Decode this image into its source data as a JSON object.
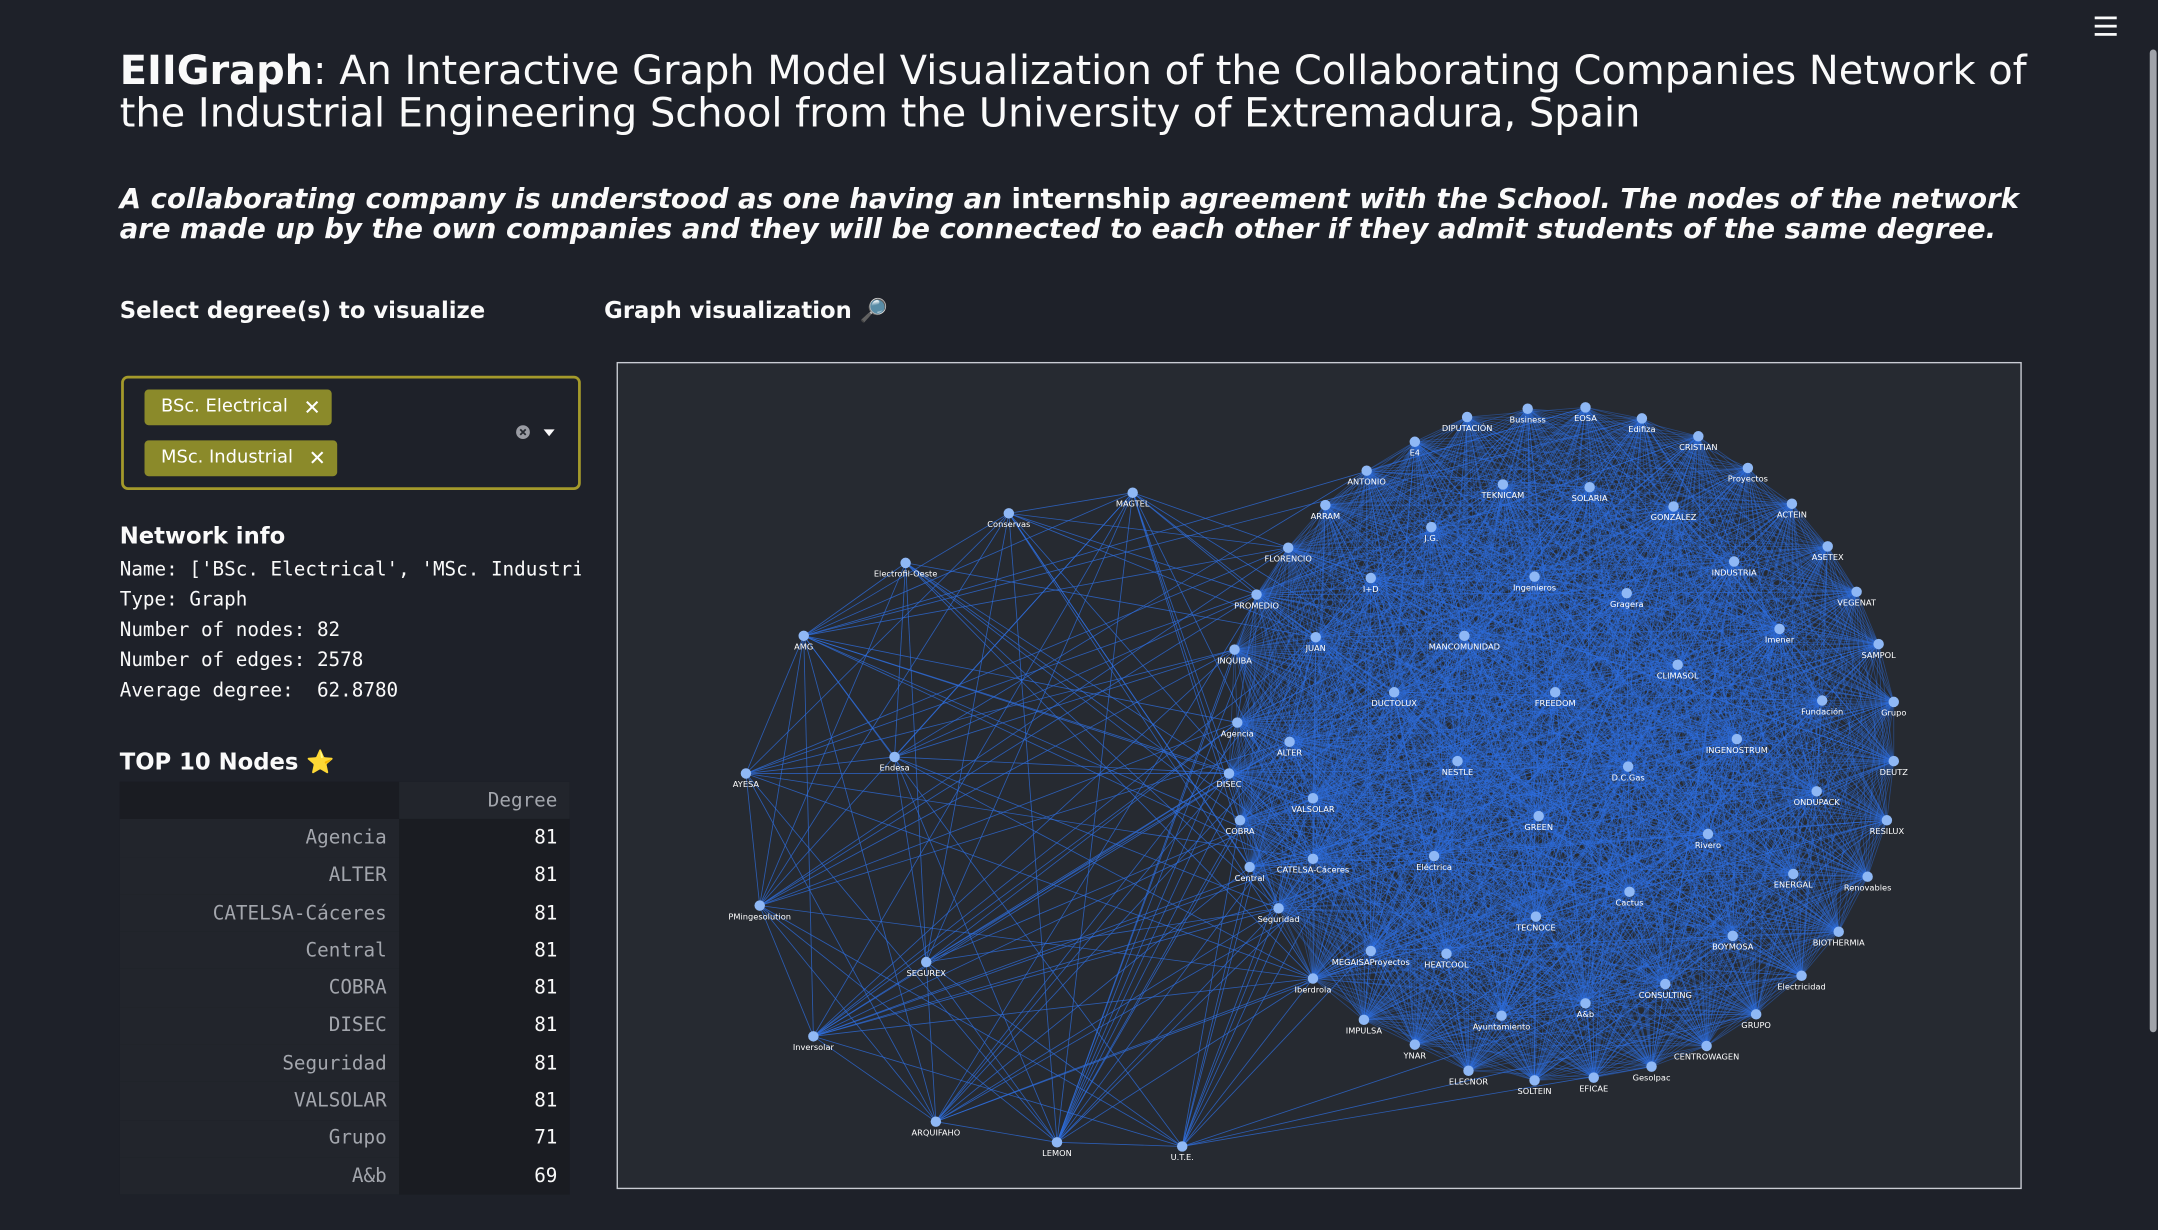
{
  "header": {
    "title_bold": "EIIGraph",
    "title_rest": ": An Interactive Graph Model Visualization of the Collaborating Companies Network of the Industrial Engineering School from the University of Extremadura, Spain",
    "description_before": "A collaborating company is understood as one having an ",
    "description_bold": "internship",
    "description_after": " agreement with the School. The nodes of the network are made up by the own companies and they will be connected to each other if they admit students of the same degree."
  },
  "sidebar": {
    "select_label": "Select degree(s) to visualize",
    "chips": [
      "BSc. Electrical",
      "MSc. Industrial"
    ],
    "network_info_title": "Network info",
    "network_info": [
      "Name: ['BSc. Electrical', 'MSc. Industri",
      "Type: Graph",
      "Number of nodes: 82",
      "Number of edges: 2578",
      "Average degree:  62.8780"
    ],
    "top_title": "TOP 10 Nodes ⭐",
    "table": {
      "column": "Degree",
      "rows": [
        [
          "Agencia",
          81
        ],
        [
          "ALTER",
          81
        ],
        [
          "CATELSA-Cáceres",
          81
        ],
        [
          "Central",
          81
        ],
        [
          "COBRA",
          81
        ],
        [
          "DISEC",
          81
        ],
        [
          "Seguridad",
          81
        ],
        [
          "VALSOLAR",
          81
        ],
        [
          "Grupo",
          71
        ],
        [
          "A&b",
          69
        ]
      ]
    }
  },
  "graph": {
    "title": "Graph visualization 🔎",
    "nodes": [
      {
        "label": "Conservas"
      },
      {
        "label": "MAGTEL"
      },
      {
        "label": "Electrofil-Oeste"
      },
      {
        "label": "AMG"
      },
      {
        "label": "AYESA"
      },
      {
        "label": "Endesa"
      },
      {
        "label": "PMingesolution"
      },
      {
        "label": "SEGUREX"
      },
      {
        "label": "Inversolar"
      },
      {
        "label": "ARQUIFAHO"
      },
      {
        "label": "LEMON"
      },
      {
        "label": "U.T.E."
      },
      {
        "label": "DIPUTACIÓN"
      },
      {
        "label": "Business"
      },
      {
        "label": "EOSA"
      },
      {
        "label": "Edifiza"
      },
      {
        "label": "CRISTIAN"
      },
      {
        "label": "Proyectos"
      },
      {
        "label": "ACTEIN"
      },
      {
        "label": "ASETEX"
      },
      {
        "label": "VEGENAT"
      },
      {
        "label": "SAMPOL"
      },
      {
        "label": "Grupo"
      },
      {
        "label": "DEUTZ"
      },
      {
        "label": "RESILUX"
      },
      {
        "label": "Renovables"
      },
      {
        "label": "BIOTHERMIA"
      },
      {
        "label": "Electricidad"
      },
      {
        "label": "GRUPO"
      },
      {
        "label": "CENTROWAGEN"
      },
      {
        "label": "Gesolpac"
      },
      {
        "label": "EFICAE"
      },
      {
        "label": "SOLTEIN"
      },
      {
        "label": "ELECNOR"
      },
      {
        "label": "YNAR"
      },
      {
        "label": "IMPULSA"
      },
      {
        "label": "Iberdrola"
      },
      {
        "label": "Seguridad"
      },
      {
        "label": "Central"
      },
      {
        "label": "COBRA"
      },
      {
        "label": "DISEC"
      },
      {
        "label": "Agencia"
      },
      {
        "label": "INQUIBA"
      },
      {
        "label": "PROMEDIO"
      },
      {
        "label": "FLORENCIO"
      },
      {
        "label": "ARRAM"
      },
      {
        "label": "ANTONIO"
      },
      {
        "label": "E4"
      },
      {
        "label": "TEKNICAM"
      },
      {
        "label": "SOLARIA"
      },
      {
        "label": "GONZÁLEZ"
      },
      {
        "label": "J.G."
      },
      {
        "label": "I+D"
      },
      {
        "label": "Ingenieros"
      },
      {
        "label": "Gragera"
      },
      {
        "label": "INDUSTRIA"
      },
      {
        "label": "Imener"
      },
      {
        "label": "JUAN"
      },
      {
        "label": "MANCOMUNIDAD"
      },
      {
        "label": "CLIMASOL"
      },
      {
        "label": "DUCTOLUX"
      },
      {
        "label": "FREEDOM"
      },
      {
        "label": "Fundación"
      },
      {
        "label": "ALTER"
      },
      {
        "label": "INGENOSTRUM"
      },
      {
        "label": "NESTLE"
      },
      {
        "label": "D.C.Gas"
      },
      {
        "label": "ONDUPACK"
      },
      {
        "label": "VALSOLAR"
      },
      {
        "label": "GREEN"
      },
      {
        "label": "Rivero"
      },
      {
        "label": "CATELSA-Cáceres"
      },
      {
        "label": "Eléctrica"
      },
      {
        "label": "ENERGAL"
      },
      {
        "label": "Cactus"
      },
      {
        "label": "TECNOCE"
      },
      {
        "label": "BOYMOSA"
      },
      {
        "label": "MEGAISAProyectos"
      },
      {
        "label": "HEATCOOL"
      },
      {
        "label": "CONSULTING"
      },
      {
        "label": "A&b"
      },
      {
        "label": "Ayuntamiento"
      }
    ]
  }
}
